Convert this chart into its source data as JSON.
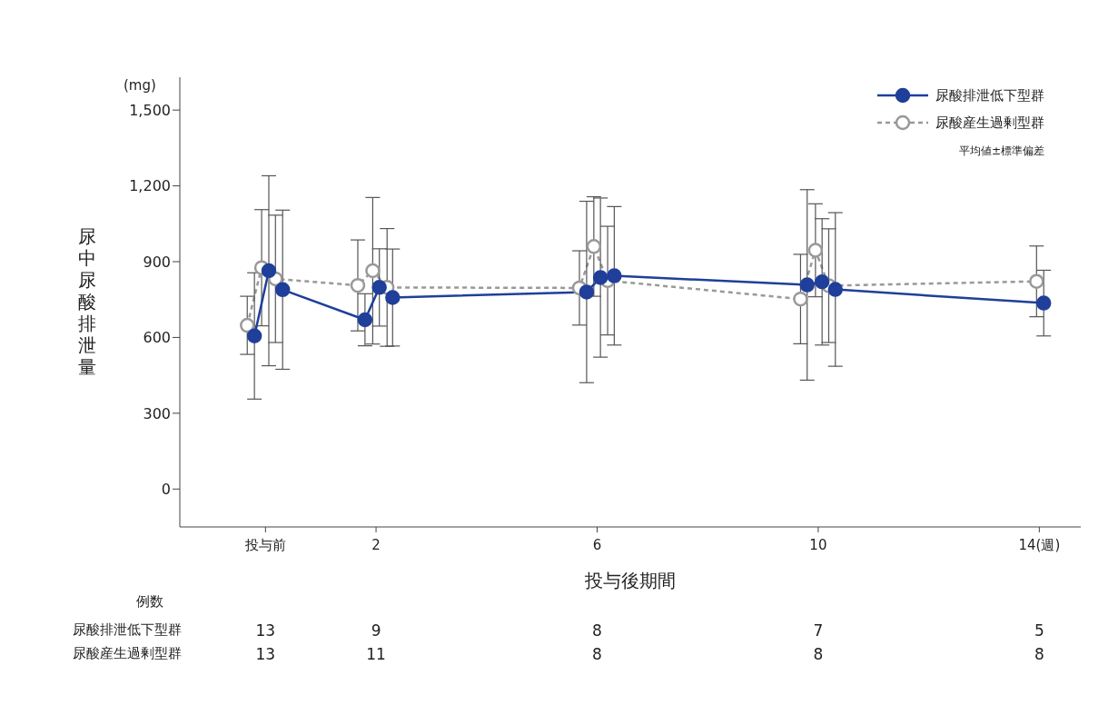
{
  "chart_data": {
    "type": "line",
    "xlabel": "投与後期間",
    "ylabel": "尿中尿酸排泄量",
    "xlim": [
      -1.55,
      14.75
    ],
    "xticks": [
      {
        "value": 0,
        "label": "投与前"
      },
      2,
      6,
      10,
      {
        "value": 14,
        "label": "14(週)"
      }
    ],
    "ylim": [
      -150,
      1630
    ],
    "yticks": [
      0,
      300,
      600,
      900,
      {
        "value": 1200,
        "label": "1,200"
      },
      {
        "value": 1500,
        "label": "1,500"
      }
    ],
    "grid": false,
    "legend": "top right",
    "marker": "circle",
    "series": [
      {
        "name": "尿酸排泄低下型群",
        "color": "#1f3f9a",
        "line_style": "solid",
        "x": [
          -0.2,
          0.06,
          0.31,
          1.8,
          2.06,
          2.3,
          5.81,
          6.06,
          6.31,
          9.8,
          10.07,
          10.31,
          14.08
        ],
        "values": [
          606,
          864,
          789,
          670,
          798,
          758,
          780,
          837,
          844,
          808,
          820,
          790,
          736
        ],
        "errors": [
          250,
          376,
          315,
          103,
          153,
          192,
          359,
          315,
          274,
          377,
          250,
          304,
          130
        ]
      },
      {
        "name": "尿酸産生過剰型群",
        "color": "#999999",
        "line_style": "dashed",
        "x": [
          -0.33,
          -0.07,
          0.18,
          1.67,
          1.94,
          2.2,
          5.68,
          5.94,
          6.19,
          9.68,
          9.95,
          10.19,
          13.95
        ],
        "values": [
          648,
          876,
          832,
          806,
          864,
          798,
          796,
          960,
          825,
          752,
          945,
          805,
          822
        ],
        "errors": [
          115,
          230,
          252,
          180,
          290,
          233,
          147,
          197,
          215,
          177,
          184,
          225,
          140
        ]
      }
    ],
    "annotations": [
      "(mg)",
      "平均値±標準偏差",
      "例数",
      "尿酸排泄低下型群",
      "13",
      "9",
      "8",
      "7",
      "5",
      "尿酸産生過剰型群",
      "13",
      "11",
      "8",
      "8",
      "8"
    ]
  }
}
